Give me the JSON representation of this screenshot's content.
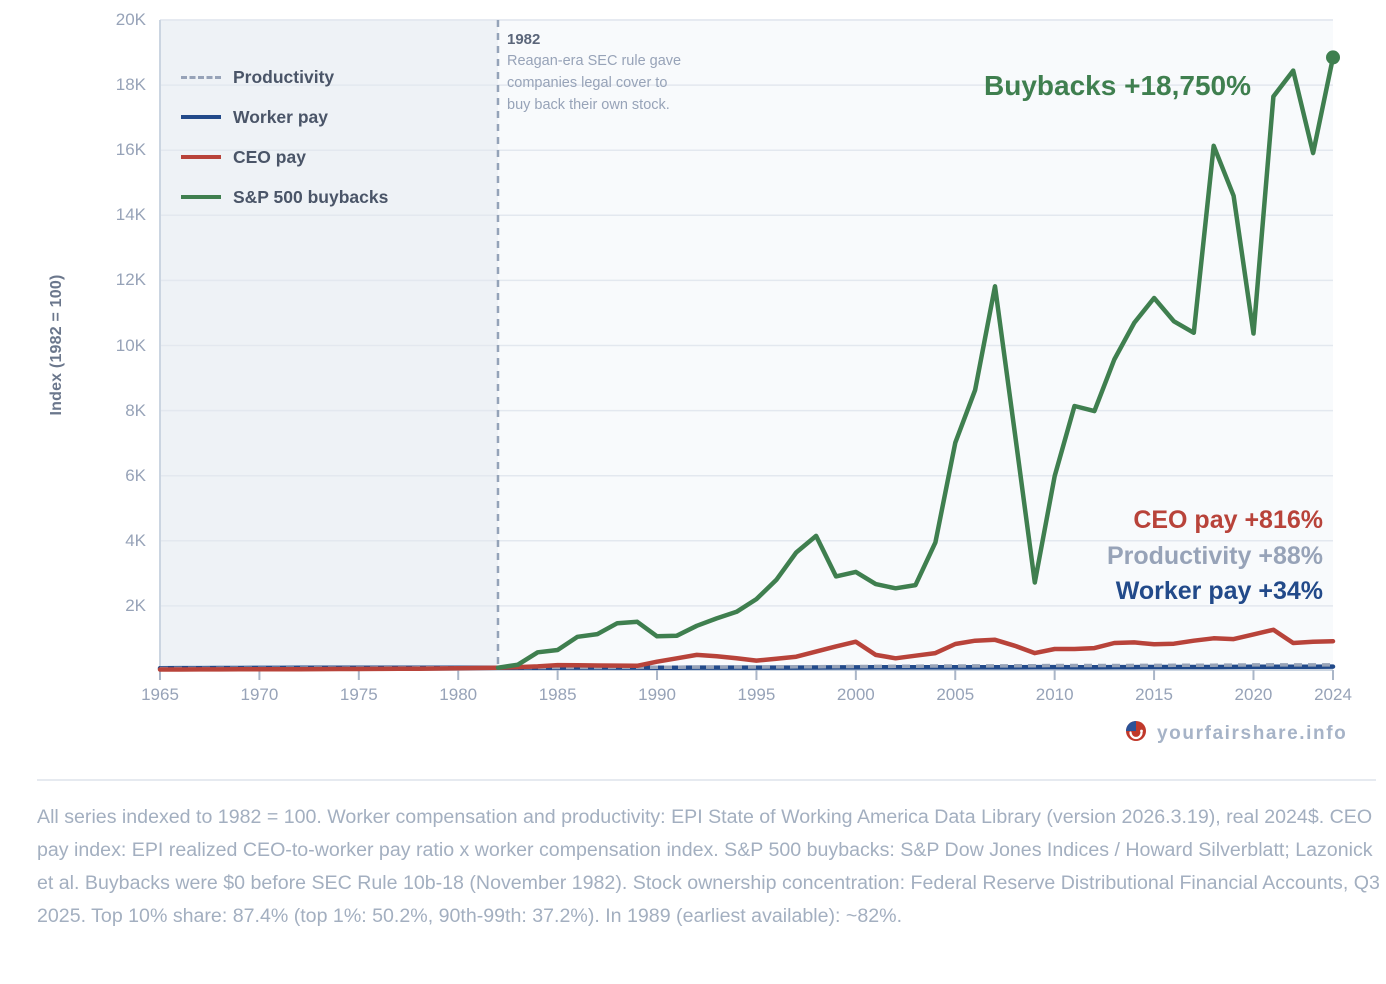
{
  "chart_data": {
    "type": "line",
    "title": "",
    "xlabel": "",
    "ylabel": "Index (1982 = 100)",
    "xlim": [
      1965,
      2024
    ],
    "ylim": [
      0,
      20000
    ],
    "grid": true,
    "xticks": [
      {
        "value": 1965,
        "label": "1965"
      },
      {
        "value": 1970,
        "label": "1970"
      },
      {
        "value": 1975,
        "label": "1975"
      },
      {
        "value": 1980,
        "label": "1980"
      },
      {
        "value": 1985,
        "label": "1985"
      },
      {
        "value": 1990,
        "label": "1990"
      },
      {
        "value": 1995,
        "label": "1995"
      },
      {
        "value": 2000,
        "label": "2000"
      },
      {
        "value": 2005,
        "label": "2005"
      },
      {
        "value": 2010,
        "label": "2010"
      },
      {
        "value": 2015,
        "label": "2015"
      },
      {
        "value": 2020,
        "label": "2020"
      },
      {
        "value": 2024,
        "label": "2024"
      }
    ],
    "yticks": [
      {
        "value": 2000,
        "label": "2K"
      },
      {
        "value": 4000,
        "label": "4K"
      },
      {
        "value": 6000,
        "label": "6K"
      },
      {
        "value": 8000,
        "label": "8K"
      },
      {
        "value": 10000,
        "label": "10K"
      },
      {
        "value": 12000,
        "label": "12K"
      },
      {
        "value": 14000,
        "label": "14K"
      },
      {
        "value": 16000,
        "label": "16K"
      },
      {
        "value": 18000,
        "label": "18K"
      },
      {
        "value": 20000,
        "label": "20K"
      }
    ],
    "x": [
      1965,
      1966,
      1967,
      1968,
      1969,
      1970,
      1971,
      1972,
      1973,
      1974,
      1975,
      1976,
      1977,
      1978,
      1979,
      1980,
      1981,
      1982,
      1983,
      1984,
      1985,
      1986,
      1987,
      1988,
      1989,
      1990,
      1991,
      1992,
      1993,
      1994,
      1995,
      1996,
      1997,
      1998,
      1999,
      2000,
      2001,
      2002,
      2003,
      2004,
      2005,
      2006,
      2007,
      2008,
      2009,
      2010,
      2011,
      2012,
      2013,
      2014,
      2015,
      2016,
      2017,
      2018,
      2019,
      2020,
      2021,
      2022,
      2023,
      2024
    ],
    "series": [
      {
        "key": "productivity",
        "name": "Productivity",
        "color": "#97a3b8",
        "dashed": true,
        "values": [
          78,
          80,
          81,
          83,
          83,
          84,
          87,
          89,
          92,
          90,
          92,
          95,
          96,
          97,
          97,
          97,
          99,
          100,
          103,
          106,
          108,
          111,
          111,
          113,
          114,
          116,
          117,
          121,
          121,
          122,
          123,
          126,
          128,
          131,
          135,
          138,
          141,
          145,
          149,
          153,
          155,
          156,
          158,
          159,
          163,
          168,
          168,
          169,
          170,
          171,
          173,
          174,
          176,
          178,
          181,
          186,
          189,
          186,
          187,
          188
        ]
      },
      {
        "key": "worker",
        "name": "Worker pay",
        "color": "#224a8a",
        "dashed": false,
        "values": [
          86,
          88,
          89,
          91,
          93,
          94,
          95,
          98,
          99,
          98,
          98,
          99,
          100,
          101,
          101,
          99,
          99,
          100,
          100,
          100,
          101,
          103,
          103,
          103,
          103,
          102,
          102,
          104,
          104,
          104,
          103,
          103,
          105,
          108,
          110,
          111,
          113,
          115,
          117,
          117,
          116,
          116,
          117,
          117,
          120,
          120,
          118,
          118,
          119,
          119,
          122,
          123,
          124,
          124,
          126,
          133,
          131,
          129,
          131,
          134
        ]
      },
      {
        "key": "ceo",
        "name": "CEO pay",
        "color": "#b8433a",
        "dashed": false,
        "values": [
          45,
          47,
          48,
          50,
          51,
          52,
          54,
          56,
          58,
          60,
          62,
          65,
          68,
          72,
          78,
          84,
          92,
          100,
          120,
          140,
          180,
          175,
          170,
          165,
          160,
          285,
          390,
          495,
          455,
          390,
          320,
          375,
          440,
          595,
          755,
          900,
          495,
          390,
          470,
          550,
          830,
          930,
          960,
          775,
          550,
          675,
          675,
          705,
          860,
          880,
          820,
          840,
          930,
          1005,
          980,
          1125,
          1265,
          860,
          900,
          916
        ]
      },
      {
        "key": "buybacks",
        "name": "S&P 500 buybacks",
        "color": "#3f7f4f",
        "dashed": false,
        "end_marker": true,
        "values": [
          null,
          null,
          null,
          null,
          null,
          null,
          null,
          null,
          null,
          null,
          null,
          null,
          null,
          null,
          null,
          null,
          null,
          100,
          195,
          575,
          645,
          1050,
          1135,
          1470,
          1510,
          1065,
          1085,
          1390,
          1615,
          1820,
          2210,
          2800,
          3640,
          4150,
          2905,
          3045,
          2670,
          2540,
          2640,
          3950,
          7015,
          8630,
          11820,
          7300,
          2720,
          5990,
          8140,
          7985,
          9570,
          10695,
          11460,
          10745,
          10390,
          16135,
          14600,
          10370,
          17650,
          18445,
          15910,
          18850
        ]
      }
    ],
    "legend": {
      "position": "top-left",
      "items": [
        {
          "label": "Productivity",
          "series": "productivity"
        },
        {
          "label": "Worker pay",
          "series": "worker"
        },
        {
          "label": "CEO pay",
          "series": "ceo"
        },
        {
          "label": "S&P 500 buybacks",
          "series": "buybacks"
        }
      ]
    },
    "shaded_region": {
      "from": 1965,
      "to": 1982
    },
    "annotation": {
      "x": 1982,
      "title": "1982",
      "lines": [
        "Reagan-era SEC rule gave",
        "companies legal cover to",
        "buy back their own stock."
      ]
    },
    "end_labels": {
      "buybacks": "Buybacks +18,750%",
      "ceo": "CEO pay +816%",
      "productivity": "Productivity +88%",
      "worker": "Worker pay +34%"
    }
  },
  "watermark": {
    "icon": "pie-smile-logo-icon",
    "text": "yourfairshare.info"
  },
  "footnote": "All series indexed to 1982 = 100. Worker compensation and productivity: EPI State of Working America Data Library (version 2026.3.19), real 2024$. CEO pay index: EPI realized CEO-to-worker pay ratio x worker compensation index. S&P 500 buybacks: S&P Dow Jones Indices / Howard Silverblatt; Lazonick et al. Buybacks were $0 before SEC Rule 10b-18 (November 1982). Stock ownership concentration: Federal Reserve Distributional Financial Accounts, Q3 2025. Top 10% share: 87.4% (top 1%: 50.2%, 90th-99th: 37.2%). In 1989 (earliest available): ~82%."
}
